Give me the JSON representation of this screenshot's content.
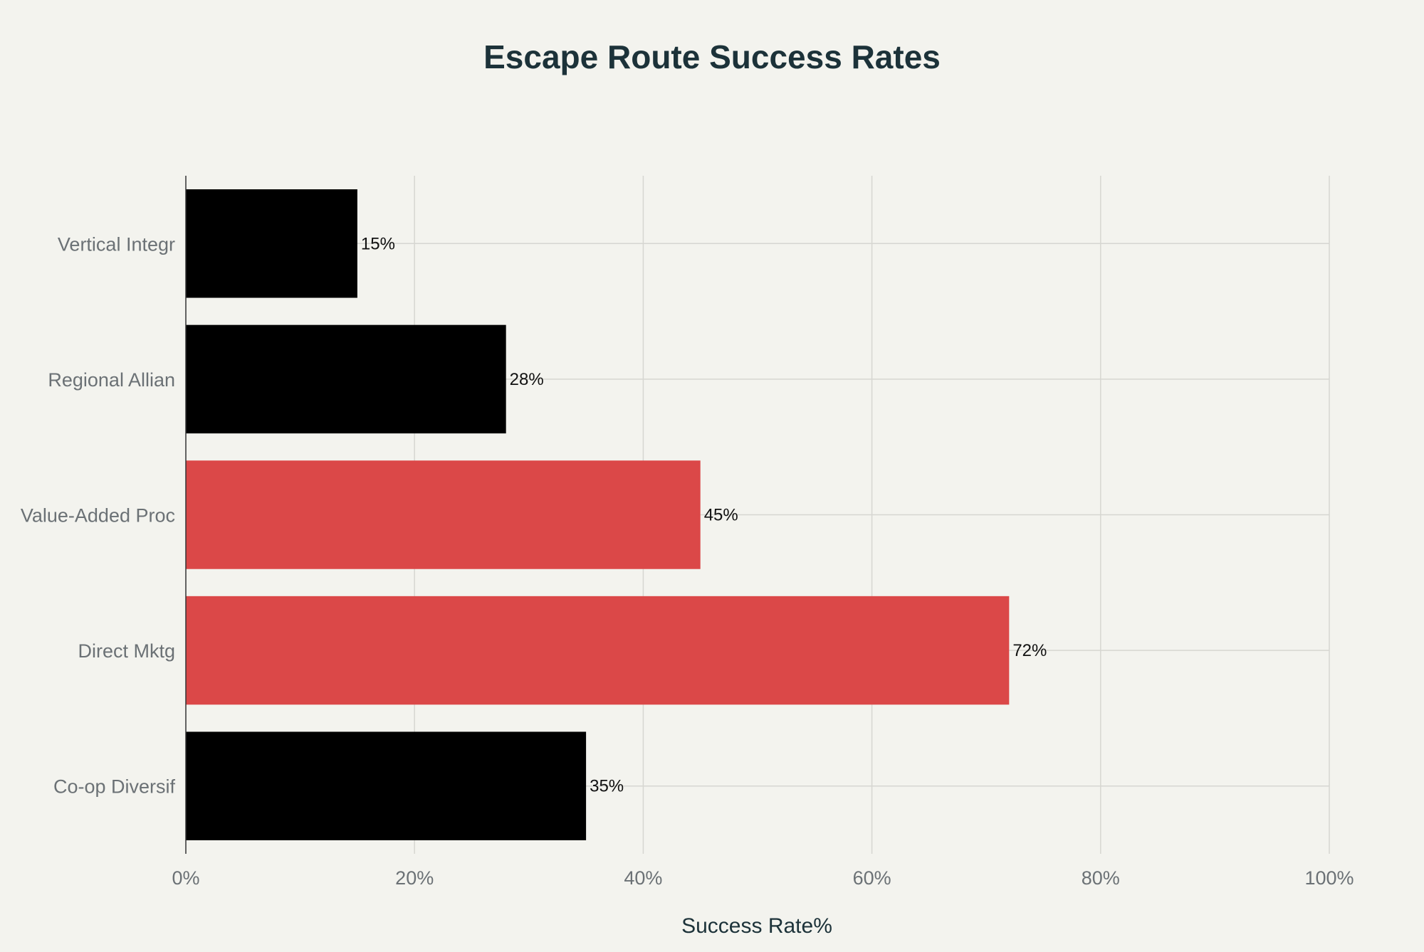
{
  "chart_data": {
    "type": "bar",
    "orientation": "horizontal",
    "title": "Escape Route Success Rates",
    "xlabel": "Success Rate%",
    "ylabel": "",
    "categories": [
      "Vertical Integr",
      "Regional Allian",
      "Value-Added Proc",
      "Direct Mktg",
      "Co-op Diversif"
    ],
    "values": [
      15,
      28,
      45,
      72,
      35
    ],
    "data_labels": [
      "15%",
      "28%",
      "45%",
      "72%",
      "35%"
    ],
    "bar_colors": [
      "#000000",
      "#000000",
      "#db4848",
      "#db4848",
      "#000000"
    ],
    "xlim": [
      0,
      100
    ],
    "x_ticks": [
      0,
      20,
      40,
      60,
      80,
      100
    ],
    "x_tick_labels": [
      "0%",
      "20%",
      "40%",
      "60%",
      "80%",
      "100%"
    ],
    "grid": true,
    "legend": "none"
  },
  "colors": {
    "background": "#f3f3ee",
    "title": "#1c3239",
    "axis_label": "#1c3239",
    "tick_label": "#6b7175",
    "grid": "#d6d6d1",
    "axis_line": "#333333",
    "data_label": "#111111",
    "highlight": "#db4848",
    "base": "#000000"
  }
}
